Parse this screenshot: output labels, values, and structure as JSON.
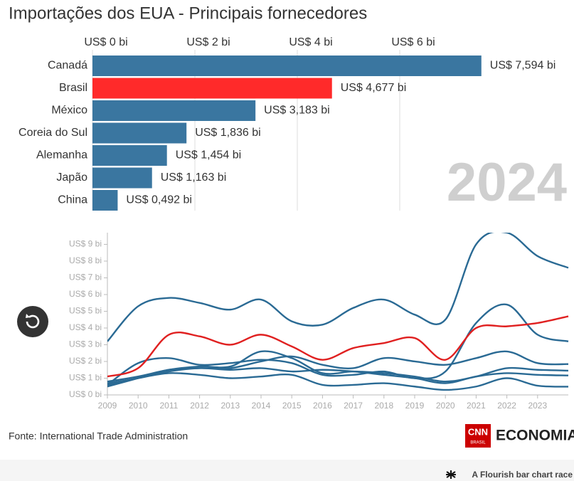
{
  "chart_data": [
    {
      "type": "bar",
      "title": "Importações dos EUA - Principais fornecedores",
      "categories": [
        "Canadá",
        "Brasil",
        "México",
        "Coreia do Sul",
        "Alemanha",
        "Japão",
        "China"
      ],
      "values": [
        7.594,
        4.677,
        3.183,
        1.836,
        1.454,
        1.163,
        0.492
      ],
      "value_labels": [
        "US$ 7,594 bi",
        "US$ 4,677 bi",
        "US$ 3,183 bi",
        "US$ 1,836 bi",
        "US$ 1,454 bi",
        "US$ 1,163 bi",
        "US$ 0,492 bi"
      ],
      "colors": [
        "#3a76a0",
        "#ff2a2a",
        "#3a76a0",
        "#3a76a0",
        "#3a76a0",
        "#3a76a0",
        "#3a76a0"
      ],
      "xlim": [
        0,
        8
      ],
      "xticks": [
        {
          "value": 0,
          "label": "US$ 0 bi"
        },
        {
          "value": 2,
          "label": "US$ 2 bi"
        },
        {
          "value": 4,
          "label": "US$ 4 bi"
        },
        {
          "value": 6,
          "label": "US$ 6 bi"
        }
      ],
      "grid": true,
      "annotation": "2024"
    },
    {
      "type": "line",
      "x": [
        2009,
        2010,
        2011,
        2012,
        2013,
        2014,
        2015,
        2016,
        2017,
        2018,
        2019,
        2020,
        2021,
        2022,
        2023,
        2024
      ],
      "series": [
        {
          "color": "#2a6a94",
          "values": [
            3.2,
            5.3,
            5.8,
            5.5,
            5.1,
            5.7,
            4.4,
            4.2,
            5.2,
            5.7,
            4.8,
            4.5,
            9.0,
            9.7,
            8.3,
            7.6
          ]
        },
        {
          "color": "#2a6a94",
          "values": [
            0.6,
            1.9,
            2.2,
            1.8,
            1.9,
            2.1,
            1.9,
            1.2,
            1.2,
            1.4,
            1.0,
            1.4,
            4.3,
            5.4,
            3.6,
            3.2
          ]
        },
        {
          "color": "#2a6a94",
          "values": [
            0.5,
            1.0,
            1.5,
            1.6,
            1.6,
            2.0,
            2.3,
            1.8,
            1.6,
            2.2,
            2.0,
            1.8,
            2.2,
            2.6,
            1.9,
            1.84
          ]
        },
        {
          "color": "#2a6a94",
          "values": [
            0.8,
            1.1,
            1.5,
            1.7,
            1.7,
            2.6,
            2.2,
            1.3,
            1.4,
            1.3,
            1.1,
            0.8,
            1.1,
            1.6,
            1.5,
            1.45
          ]
        },
        {
          "color": "#2a6a94",
          "values": [
            0.7,
            1.0,
            1.4,
            1.6,
            1.5,
            1.6,
            1.4,
            1.5,
            1.4,
            1.2,
            1.0,
            0.7,
            1.1,
            1.3,
            1.2,
            1.16
          ]
        },
        {
          "color": "#2a6a94",
          "values": [
            0.6,
            1.0,
            1.3,
            1.2,
            1.0,
            1.1,
            1.2,
            0.6,
            0.6,
            0.7,
            0.5,
            0.3,
            0.5,
            1.0,
            0.55,
            0.49
          ]
        },
        {
          "color": "#e02020",
          "values": [
            1.1,
            1.6,
            3.6,
            3.5,
            3.0,
            3.6,
            2.9,
            2.1,
            2.8,
            3.1,
            3.4,
            2.1,
            4.0,
            4.1,
            4.3,
            4.7
          ]
        }
      ],
      "xlim": [
        2009,
        2024
      ],
      "xticks": [
        2009,
        2010,
        2011,
        2012,
        2013,
        2014,
        2015,
        2016,
        2017,
        2018,
        2019,
        2020,
        2021,
        2022,
        2023
      ],
      "ylim": [
        0,
        9.7
      ],
      "yticks": [
        {
          "value": 0,
          "label": "US$ 0 bi"
        },
        {
          "value": 1,
          "label": "US$ 1 bi"
        },
        {
          "value": 2,
          "label": "US$ 2 bi"
        },
        {
          "value": 3,
          "label": "US$ 3 bi"
        },
        {
          "value": 4,
          "label": "US$ 4 bi"
        },
        {
          "value": 5,
          "label": "US$ 5 bi"
        },
        {
          "value": 6,
          "label": "US$ 6 bi"
        },
        {
          "value": 7,
          "label": "US$ 7 bi"
        },
        {
          "value": 8,
          "label": "US$ 8 bi"
        },
        {
          "value": 9,
          "label": "US$ 9 bi"
        }
      ]
    }
  ],
  "source": "Fonte: International Trade Administration",
  "logo": {
    "brand": "CNN",
    "sub": "BRASIL",
    "section": "ECONOMIA"
  },
  "footer": "A Flourish bar chart race"
}
